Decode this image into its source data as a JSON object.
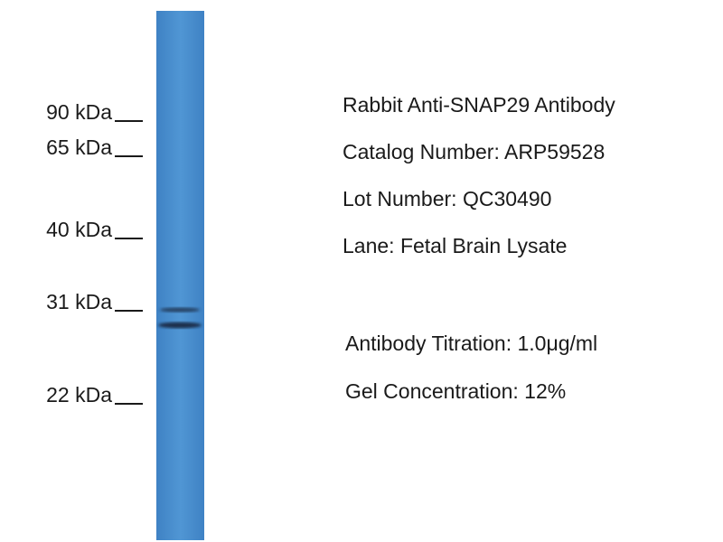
{
  "markers": [
    {
      "label": "90 kDa"
    },
    {
      "label": "65 kDa"
    },
    {
      "label": "40 kDa"
    },
    {
      "label": "31 kDa"
    },
    {
      "label": "22 kDa"
    }
  ],
  "info": [
    "Rabbit Anti-SNAP29 Antibody",
    "Catalog Number: ARP59528",
    "Lot Number: QC30490",
    "Lane: Fetal Brain Lysate",
    "Antibody Titration: 1.0μg/ml",
    "Gel Concentration: 12%"
  ]
}
